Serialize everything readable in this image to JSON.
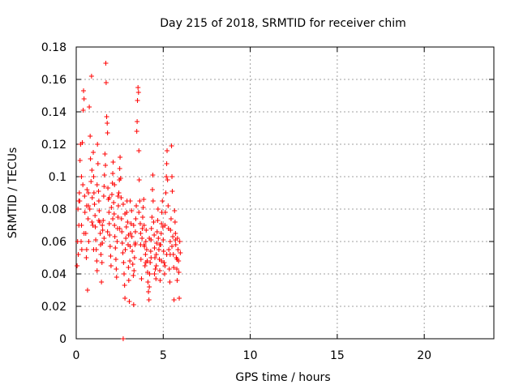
{
  "chart_data": {
    "type": "scatter",
    "title": "Day 215 of 2018, SRMTID for receiver chim",
    "xlabel": "GPS time / hours",
    "ylabel": "SRMTID / TECUs",
    "xlim": [
      0,
      24
    ],
    "ylim": [
      0,
      0.18
    ],
    "x_ticks": [
      "0",
      "5",
      "10",
      "15",
      "20"
    ],
    "x_tick_values": [
      0,
      5,
      10,
      15,
      20
    ],
    "y_ticks": [
      "0",
      "0.02",
      "0.04",
      "0.06",
      "0.08",
      "0.1",
      "0.12",
      "0.14",
      "0.16",
      "0.18"
    ],
    "y_tick_values": [
      0,
      0.02,
      0.04,
      0.06,
      0.08,
      0.1,
      0.12,
      0.14,
      0.16,
      0.18
    ],
    "grid": true,
    "marker": "+",
    "color": "#ff0000",
    "series": [
      {
        "name": "SRMTID",
        "points": [
          [
            0.05,
            0.045
          ],
          [
            0.08,
            0.06
          ],
          [
            0.1,
            0.08
          ],
          [
            0.12,
            0.052
          ],
          [
            0.15,
            0.07
          ],
          [
            0.18,
            0.09
          ],
          [
            0.2,
            0.085
          ],
          [
            0.22,
            0.11
          ],
          [
            0.25,
            0.12
          ],
          [
            0.28,
            0.06
          ],
          [
            0.3,
            0.1
          ],
          [
            0.32,
            0.055
          ],
          [
            0.35,
            0.121
          ],
          [
            0.38,
            0.095
          ],
          [
            0.4,
            0.141
          ],
          [
            0.42,
            0.153
          ],
          [
            0.45,
            0.148
          ],
          [
            0.48,
            0.088
          ],
          [
            0.5,
            0.078
          ],
          [
            0.55,
            0.065
          ],
          [
            0.58,
            0.05
          ],
          [
            0.6,
            0.055
          ],
          [
            0.62,
            0.092
          ],
          [
            0.65,
            0.03
          ],
          [
            0.68,
            0.074
          ],
          [
            0.7,
            0.082
          ],
          [
            0.72,
            0.06
          ],
          [
            0.75,
            0.143
          ],
          [
            0.78,
            0.08
          ],
          [
            0.8,
            0.125
          ],
          [
            0.82,
            0.111
          ],
          [
            0.85,
            0.097
          ],
          [
            0.88,
            0.162
          ],
          [
            0.9,
            0.104
          ],
          [
            0.92,
            0.087
          ],
          [
            0.95,
            0.07
          ],
          [
            0.98,
            0.115
          ],
          [
            1.0,
            0.1
          ],
          [
            1.02,
            0.09
          ],
          [
            1.05,
            0.083
          ],
          [
            1.08,
            0.076
          ],
          [
            1.1,
            0.069
          ],
          [
            1.12,
            0.061
          ],
          [
            1.15,
            0.055
          ],
          [
            1.18,
            0.048
          ],
          [
            1.2,
            0.042
          ],
          [
            1.22,
            0.12
          ],
          [
            1.25,
            0.108
          ],
          [
            1.28,
            0.091
          ],
          [
            1.3,
            0.085
          ],
          [
            1.32,
            0.079
          ],
          [
            1.35,
            0.072
          ],
          [
            1.38,
            0.065
          ],
          [
            1.4,
            0.058
          ],
          [
            1.42,
            0.052
          ],
          [
            1.45,
            0.035
          ],
          [
            1.48,
            0.047
          ],
          [
            1.5,
            0.059
          ],
          [
            1.52,
            0.067
          ],
          [
            1.55,
            0.073
          ],
          [
            1.58,
            0.088
          ],
          [
            1.6,
            0.094
          ],
          [
            1.62,
            0.101
          ],
          [
            1.65,
            0.114
          ],
          [
            1.68,
            0.107
          ],
          [
            1.7,
            0.17
          ],
          [
            1.72,
            0.158
          ],
          [
            1.75,
            0.137
          ],
          [
            1.78,
            0.133
          ],
          [
            1.8,
            0.127
          ],
          [
            1.82,
            0.093
          ],
          [
            1.85,
            0.086
          ],
          [
            1.88,
            0.078
          ],
          [
            1.9,
            0.071
          ],
          [
            1.92,
            0.064
          ],
          [
            1.95,
            0.057
          ],
          [
            1.98,
            0.051
          ],
          [
            2.0,
            0.045
          ],
          [
            2.02,
            0.081
          ],
          [
            2.05,
            0.089
          ],
          [
            2.08,
            0.096
          ],
          [
            2.1,
            0.102
          ],
          [
            2.12,
            0.109
          ],
          [
            2.15,
            0.084
          ],
          [
            2.18,
            0.077
          ],
          [
            2.2,
            0.07
          ],
          [
            2.22,
            0.063
          ],
          [
            2.25,
            0.056
          ],
          [
            2.28,
            0.049
          ],
          [
            2.3,
            0.043
          ],
          [
            2.32,
            0.038
          ],
          [
            2.35,
            0.06
          ],
          [
            2.38,
            0.068
          ],
          [
            2.4,
            0.075
          ],
          [
            2.42,
            0.082
          ],
          [
            2.45,
            0.09
          ],
          [
            2.48,
            0.098
          ],
          [
            2.5,
            0.105
          ],
          [
            2.52,
            0.112
          ],
          [
            2.55,
            0.099
          ],
          [
            2.58,
            0.087
          ],
          [
            2.6,
            0.074
          ],
          [
            2.62,
            0.066
          ],
          [
            2.65,
            0.059
          ],
          [
            2.68,
            0.053
          ],
          [
            2.7,
            0.0
          ],
          [
            2.72,
            0.047
          ],
          [
            2.75,
            0.04
          ],
          [
            2.78,
            0.033
          ],
          [
            2.8,
            0.025
          ],
          [
            2.82,
            0.055
          ],
          [
            2.85,
            0.062
          ],
          [
            2.88,
            0.069
          ],
          [
            2.9,
            0.078
          ],
          [
            2.92,
            0.085
          ],
          [
            2.95,
            0.072
          ],
          [
            2.98,
            0.058
          ],
          [
            3.0,
            0.044
          ],
          [
            3.02,
            0.036
          ],
          [
            3.05,
            0.023
          ],
          [
            3.08,
            0.048
          ],
          [
            3.1,
            0.057
          ],
          [
            3.12,
            0.065
          ],
          [
            3.15,
            0.071
          ],
          [
            3.18,
            0.079
          ],
          [
            3.2,
            0.063
          ],
          [
            3.22,
            0.054
          ],
          [
            3.25,
            0.046
          ],
          [
            3.28,
            0.039
          ],
          [
            3.3,
            0.021
          ],
          [
            3.32,
            0.042
          ],
          [
            3.35,
            0.05
          ],
          [
            3.38,
            0.058
          ],
          [
            3.4,
            0.066
          ],
          [
            3.42,
            0.074
          ],
          [
            3.45,
            0.082
          ],
          [
            3.48,
            0.128
          ],
          [
            3.5,
            0.134
          ],
          [
            3.52,
            0.147
          ],
          [
            3.55,
            0.155
          ],
          [
            3.58,
            0.152
          ],
          [
            3.6,
            0.116
          ],
          [
            3.62,
            0.098
          ],
          [
            3.65,
            0.085
          ],
          [
            3.68,
            0.071
          ],
          [
            3.7,
            0.058
          ],
          [
            3.72,
            0.049
          ],
          [
            3.75,
            0.037
          ],
          [
            3.78,
            0.062
          ],
          [
            3.8,
            0.068
          ],
          [
            3.82,
            0.075
          ],
          [
            3.85,
            0.081
          ],
          [
            3.88,
            0.086
          ],
          [
            3.9,
            0.07
          ],
          [
            3.92,
            0.057
          ],
          [
            3.95,
            0.045
          ],
          [
            3.98,
            0.052
          ],
          [
            4.0,
            0.06
          ],
          [
            4.02,
            0.067
          ],
          [
            4.05,
            0.055
          ],
          [
            4.08,
            0.048
          ],
          [
            4.1,
            0.041
          ],
          [
            4.12,
            0.035
          ],
          [
            4.15,
            0.029
          ],
          [
            4.18,
            0.024
          ],
          [
            4.2,
            0.032
          ],
          [
            4.22,
            0.04
          ],
          [
            4.25,
            0.047
          ],
          [
            4.28,
            0.054
          ],
          [
            4.3,
            0.061
          ],
          [
            4.32,
            0.068
          ],
          [
            4.35,
            0.075
          ],
          [
            4.38,
            0.092
          ],
          [
            4.4,
            0.101
          ],
          [
            4.42,
            0.085
          ],
          [
            4.45,
            0.072
          ],
          [
            4.48,
            0.064
          ],
          [
            4.5,
            0.056
          ],
          [
            4.52,
            0.05
          ],
          [
            4.55,
            0.043
          ],
          [
            4.58,
            0.037
          ],
          [
            4.6,
            0.052
          ],
          [
            4.62,
            0.059
          ],
          [
            4.65,
            0.066
          ],
          [
            4.68,
            0.073
          ],
          [
            4.7,
            0.08
          ],
          [
            4.72,
            0.062
          ],
          [
            4.75,
            0.055
          ],
          [
            4.78,
            0.049
          ],
          [
            4.8,
            0.042
          ],
          [
            4.82,
            0.036
          ],
          [
            4.85,
            0.058
          ],
          [
            4.88,
            0.065
          ],
          [
            4.9,
            0.071
          ],
          [
            4.92,
            0.078
          ],
          [
            4.95,
            0.085
          ],
          [
            4.98,
            0.069
          ],
          [
            5.0,
            0.061
          ],
          [
            5.02,
            0.054
          ],
          [
            5.05,
            0.047
          ],
          [
            5.08,
            0.04
          ],
          [
            5.1,
            0.07
          ],
          [
            5.12,
            0.078
          ],
          [
            5.15,
            0.09
          ],
          [
            5.18,
            0.1
          ],
          [
            5.2,
            0.108
          ],
          [
            5.22,
            0.116
          ],
          [
            5.25,
            0.098
          ],
          [
            5.28,
            0.082
          ],
          [
            5.3,
            0.068
          ],
          [
            5.32,
            0.055
          ],
          [
            5.35,
            0.043
          ],
          [
            5.38,
            0.035
          ],
          [
            5.4,
            0.06
          ],
          [
            5.42,
            0.067
          ],
          [
            5.45,
            0.074
          ],
          [
            5.48,
            0.119
          ],
          [
            5.5,
            0.1
          ],
          [
            5.52,
            0.091
          ],
          [
            5.55,
            0.063
          ],
          [
            5.58,
            0.052
          ],
          [
            5.6,
            0.044
          ],
          [
            5.62,
            0.024
          ],
          [
            5.65,
            0.079
          ],
          [
            5.68,
            0.072
          ],
          [
            5.7,
            0.065
          ],
          [
            5.72,
            0.058
          ],
          [
            5.75,
            0.05
          ],
          [
            5.78,
            0.043
          ],
          [
            5.8,
            0.036
          ],
          [
            5.82,
            0.062
          ],
          [
            5.85,
            0.055
          ],
          [
            5.88,
            0.048
          ],
          [
            5.9,
            0.041
          ],
          [
            5.92,
            0.025
          ],
          [
            5.95,
            0.06
          ],
          [
            5.98,
            0.053
          ],
          [
            0.15,
            0.085
          ],
          [
            0.45,
            0.065
          ],
          [
            0.7,
            0.09
          ],
          [
            1.0,
            0.055
          ],
          [
            1.3,
            0.073
          ],
          [
            1.6,
            0.062
          ],
          [
            1.9,
            0.087
          ],
          [
            2.2,
            0.095
          ],
          [
            2.5,
            0.068
          ],
          [
            2.8,
            0.077
          ],
          [
            3.1,
            0.085
          ],
          [
            3.4,
            0.059
          ],
          [
            3.7,
            0.065
          ],
          [
            4.0,
            0.047
          ],
          [
            4.3,
            0.05
          ],
          [
            4.6,
            0.045
          ],
          [
            4.9,
            0.048
          ],
          [
            5.2,
            0.052
          ],
          [
            5.5,
            0.057
          ],
          [
            5.8,
            0.049
          ],
          [
            0.3,
            0.07
          ],
          [
            0.6,
            0.082
          ],
          [
            0.9,
            0.072
          ],
          [
            1.2,
            0.095
          ],
          [
            1.5,
            0.07
          ],
          [
            1.8,
            0.066
          ],
          [
            2.1,
            0.074
          ],
          [
            2.4,
            0.088
          ],
          [
            2.7,
            0.083
          ],
          [
            3.0,
            0.064
          ],
          [
            3.3,
            0.07
          ],
          [
            3.6,
            0.078
          ],
          [
            3.9,
            0.058
          ],
          [
            4.2,
            0.062
          ],
          [
            4.5,
            0.04
          ],
          [
            4.8,
            0.058
          ],
          [
            5.1,
            0.045
          ],
          [
            5.4,
            0.052
          ],
          [
            5.7,
            0.061
          ]
        ]
      }
    ]
  }
}
